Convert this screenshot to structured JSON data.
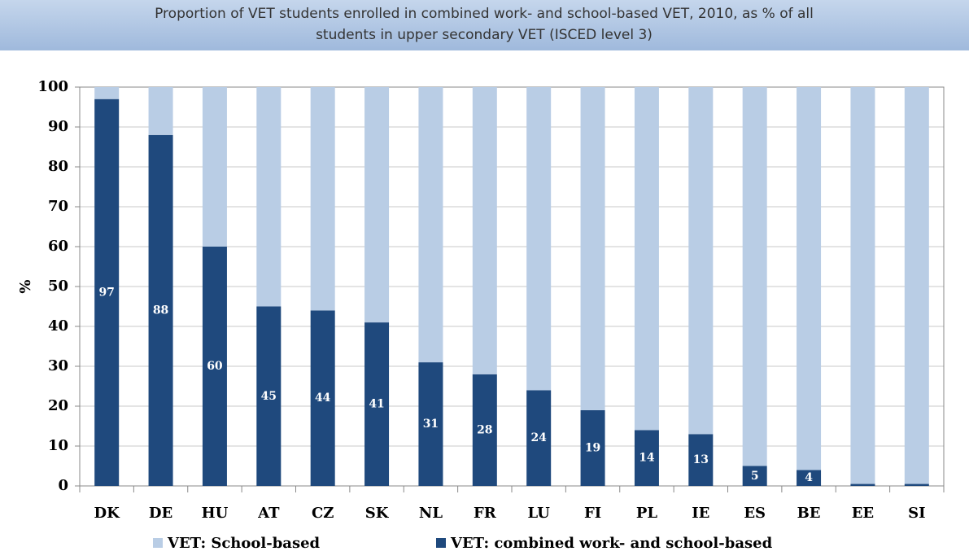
{
  "chart_data": {
    "type": "stacked_bar",
    "title": "Proportion of VET students enrolled in combined work- and school-based VET, 2010, as % of all students in upper secondary VET (ISCED level 3)",
    "y_label": "%",
    "categories": [
      "DK",
      "DE",
      "HU",
      "AT",
      "CZ",
      "SK",
      "NL",
      "FR",
      "LU",
      "FI",
      "PL",
      "IE",
      "ES",
      "BE",
      "EE",
      "SI"
    ],
    "series": [
      {
        "name": "VET: combined work- and school-based",
        "color": "#1f497d",
        "values": [
          97,
          88,
          60,
          45,
          44,
          41,
          31,
          28,
          24,
          19,
          14,
          13,
          5,
          4,
          0.5,
          0.5
        ],
        "value_labels": [
          "97",
          "88",
          "60",
          "45",
          "44",
          "41",
          "31",
          "28",
          "24",
          "19",
          "14",
          "13",
          "5",
          "4",
          null,
          null
        ]
      },
      {
        "name": "VET: School-based",
        "color": "#b9cde5",
        "values": [
          3,
          12,
          40,
          55,
          56,
          59,
          69,
          72,
          76,
          81,
          86,
          87,
          95,
          96,
          99.5,
          99.5
        ]
      }
    ],
    "ylim": [
      0,
      100
    ],
    "yticks": [
      0,
      10,
      20,
      30,
      40,
      50,
      60,
      70,
      80,
      90,
      100
    ],
    "grid": true
  }
}
